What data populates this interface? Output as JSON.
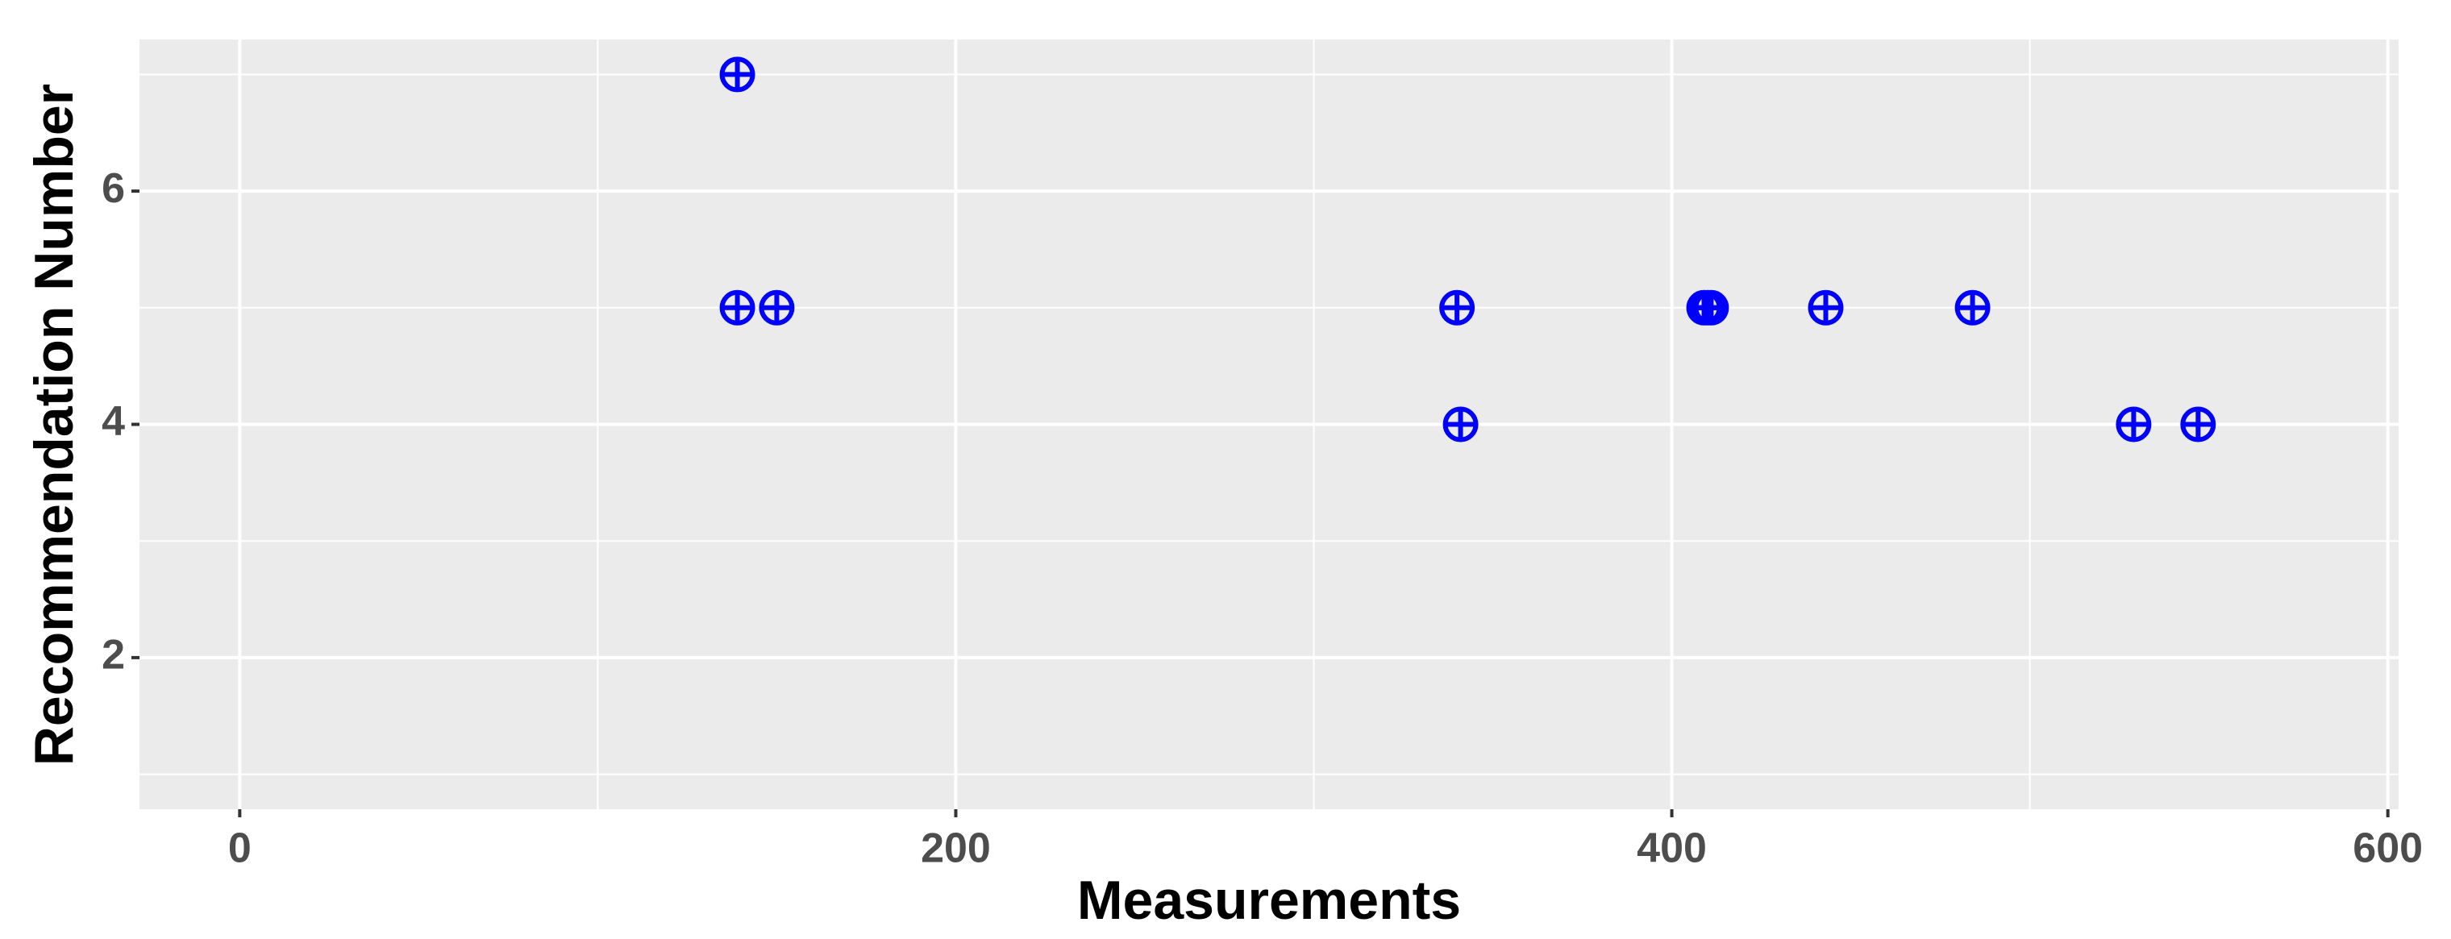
{
  "chart_data": {
    "type": "scatter",
    "x_label": "Measurements",
    "y_label": "Recommendation Number",
    "color": "#0000ff",
    "grid": true,
    "xlim": [
      -28,
      603
    ],
    "ylim": [
      0.7,
      7.3
    ],
    "xticks": [
      0,
      200,
      400,
      600
    ],
    "yticks": [
      2,
      4,
      6
    ],
    "x": [
      139,
      139,
      150,
      340,
      341,
      409,
      410,
      411,
      443,
      484,
      529,
      547
    ],
    "values": [
      7,
      5,
      5,
      5,
      4,
      5,
      5,
      5,
      5,
      5,
      4,
      4
    ]
  }
}
